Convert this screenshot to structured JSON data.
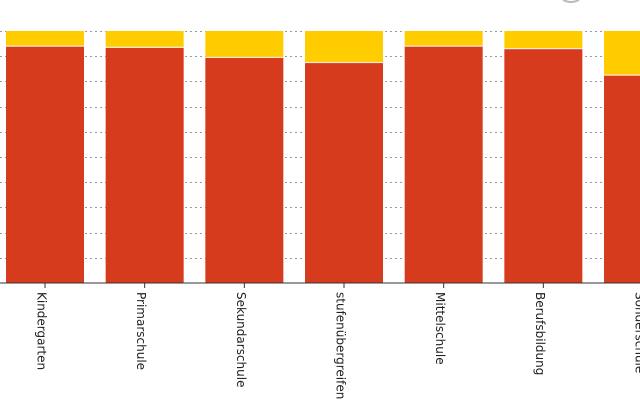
{
  "chart_data": {
    "type": "bar",
    "stacked": true,
    "categories": [
      "Kindergarten",
      "Primarschule",
      "Sekundarschule",
      "stufenübergreifend",
      "Mittelschule",
      "Berufsbildung",
      "Sonderschule"
    ],
    "series": [
      {
        "color": "#d63b1e",
        "values": [
          94,
          93.5,
          89.5,
          87.5,
          94,
          93,
          82.5
        ]
      },
      {
        "color": "#ffcc00",
        "values": [
          6,
          6.5,
          10.5,
          12.5,
          6,
          7,
          17.5
        ]
      }
    ],
    "ylim": [
      0,
      100
    ],
    "y_gridlines": [
      10,
      20,
      30,
      40,
      50,
      60,
      70,
      80,
      90,
      100
    ],
    "grid": true,
    "grid_style": "dotted horizontal",
    "x_tick_label_rotation": "vertical",
    "title": "",
    "xlabel": "",
    "ylabel": ""
  }
}
